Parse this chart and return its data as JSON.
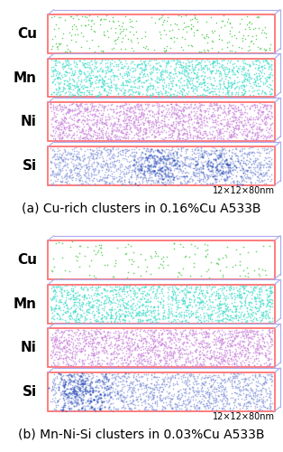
{
  "background_color": "#ffffff",
  "panels": [
    {
      "group": "a",
      "label": "Cu",
      "dot_color": "#44cc44",
      "n_dots": 300,
      "density": 0.15
    },
    {
      "group": "a",
      "label": "Mn",
      "dot_color": "#44ddcc",
      "n_dots": 1400,
      "density": 0.65
    },
    {
      "group": "a",
      "label": "Ni",
      "dot_color": "#cc88dd",
      "n_dots": 1800,
      "density": 0.85
    },
    {
      "group": "a",
      "label": "Si",
      "dot_color": "#8899dd",
      "n_dots": 1600,
      "density": 0.8
    },
    {
      "group": "b",
      "label": "Cu",
      "dot_color": "#44cc44",
      "n_dots": 150,
      "density": 0.07
    },
    {
      "group": "b",
      "label": "Mn",
      "dot_color": "#44ddcc",
      "n_dots": 1500,
      "density": 0.7
    },
    {
      "group": "b",
      "label": "Ni",
      "dot_color": "#cc88dd",
      "n_dots": 1700,
      "density": 0.8
    },
    {
      "group": "b",
      "label": "Si",
      "dot_color": "#8899dd",
      "n_dots": 1500,
      "density": 0.75
    }
  ],
  "caption_a": "(a) Cu-rich clusters in 0.16%Cu A533B",
  "caption_b": "(b) Mn-Ni-Si clusters in 0.03%Cu A533B",
  "scale_text": "12×12×80nm",
  "outer_box_color_red": "#ff6666",
  "outer_box_color_blue": "#aaaaee",
  "inner_box_color": "#ccddff",
  "label_fontsize": 11,
  "caption_fontsize": 10,
  "scale_fontsize": 7
}
